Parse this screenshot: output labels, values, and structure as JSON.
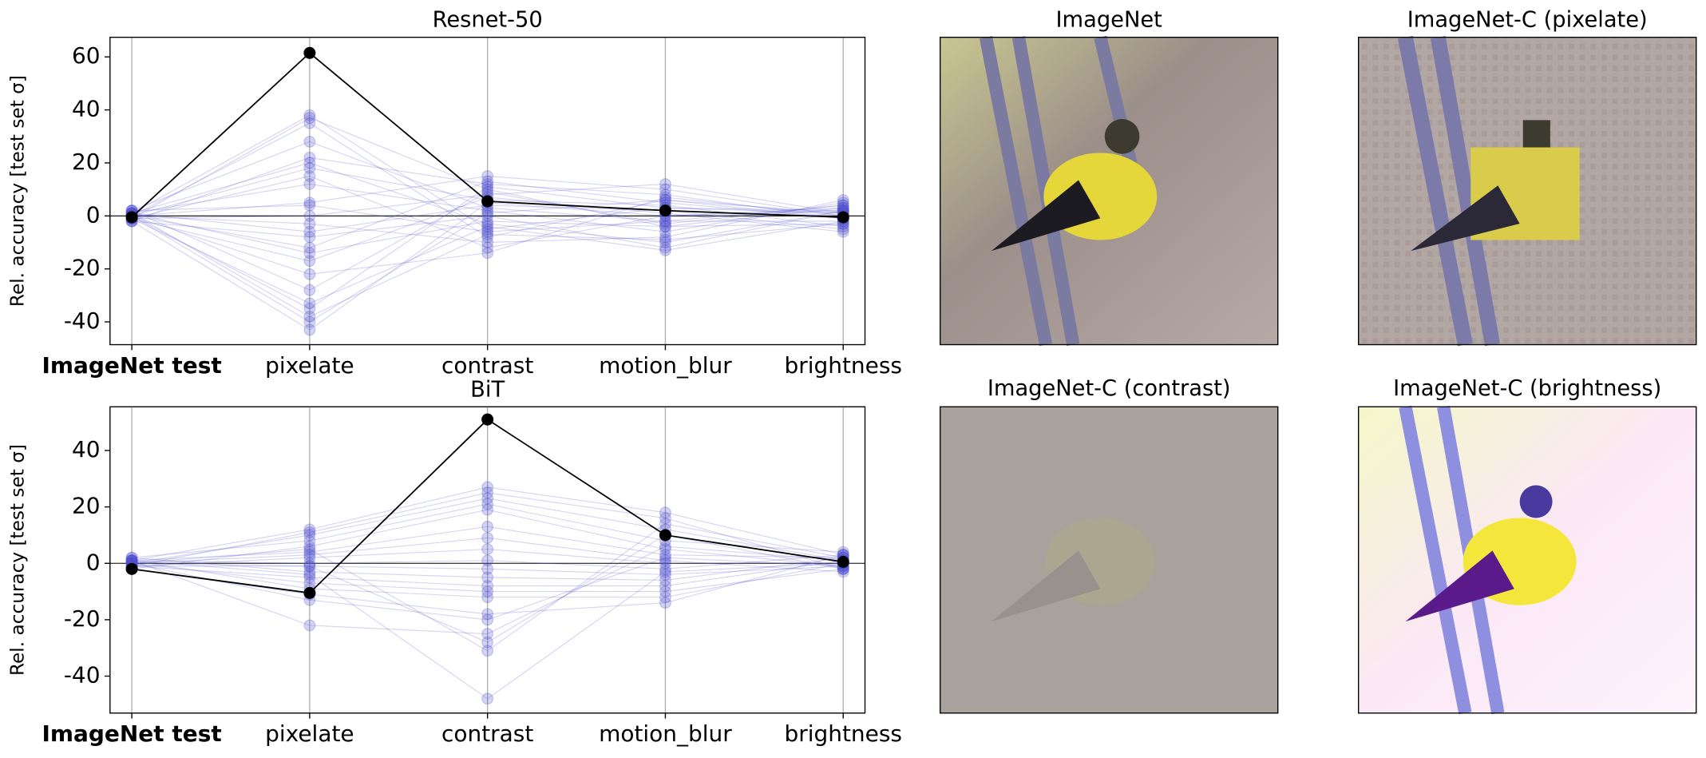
{
  "chart_data": [
    {
      "type": "line",
      "title": "Resnet-50",
      "y_label": "Rel. accuracy [test set σ]",
      "categories": [
        "ImageNet test",
        "pixelate",
        "contrast",
        "motion_blur",
        "brightness"
      ],
      "bold_first_category": true,
      "ylim": [
        -48.6,
        67.4
      ],
      "yticks": [
        -40,
        -20,
        0,
        20,
        40,
        60
      ],
      "x_grid": true,
      "reference_line": 0,
      "series": [
        {
          "color": "#5050d0",
          "alpha": 0.25,
          "values": [
            1,
            38,
            -5,
            3,
            2
          ]
        },
        {
          "color": "#5050d0",
          "alpha": 0.25,
          "values": [
            -1,
            37,
            10,
            -4,
            -3
          ]
        },
        {
          "color": "#5050d0",
          "alpha": 0.25,
          "values": [
            0,
            35,
            -8,
            6,
            1
          ]
        },
        {
          "color": "#5050d0",
          "alpha": 0.25,
          "values": [
            2,
            28,
            3,
            -2,
            4
          ]
        },
        {
          "color": "#5050d0",
          "alpha": 0.25,
          "values": [
            -2,
            22,
            12,
            8,
            -1
          ]
        },
        {
          "color": "#5050d0",
          "alpha": 0.25,
          "values": [
            1,
            20,
            -3,
            -10,
            2
          ]
        },
        {
          "color": "#5050d0",
          "alpha": 0.25,
          "values": [
            0,
            18,
            6,
            4,
            -4
          ]
        },
        {
          "color": "#5050d0",
          "alpha": 0.25,
          "values": [
            -1,
            15,
            -12,
            0,
            3
          ]
        },
        {
          "color": "#5050d0",
          "alpha": 0.25,
          "values": [
            1,
            12,
            2,
            -6,
            5
          ]
        },
        {
          "color": "#5050d0",
          "alpha": 0.25,
          "values": [
            0,
            5,
            15,
            10,
            0
          ]
        },
        {
          "color": "#5050d0",
          "alpha": 0.25,
          "values": [
            2,
            4,
            -6,
            -2,
            -2
          ]
        },
        {
          "color": "#5050d0",
          "alpha": 0.25,
          "values": [
            -1,
            0,
            8,
            12,
            1
          ]
        },
        {
          "color": "#5050d0",
          "alpha": 0.25,
          "values": [
            0,
            -3,
            -10,
            -8,
            6
          ]
        },
        {
          "color": "#5050d0",
          "alpha": 0.25,
          "values": [
            1,
            -6,
            4,
            2,
            -5
          ]
        },
        {
          "color": "#5050d0",
          "alpha": 0.25,
          "values": [
            -2,
            -8,
            0,
            -12,
            2
          ]
        },
        {
          "color": "#5050d0",
          "alpha": 0.25,
          "values": [
            0,
            -12,
            13,
            5,
            -1
          ]
        },
        {
          "color": "#5050d0",
          "alpha": 0.25,
          "values": [
            1,
            -14,
            -2,
            -4,
            3
          ]
        },
        {
          "color": "#5050d0",
          "alpha": 0.25,
          "values": [
            -1,
            -17,
            7,
            1,
            -6
          ]
        },
        {
          "color": "#5050d0",
          "alpha": 0.25,
          "values": [
            0,
            -22,
            -14,
            7,
            0
          ]
        },
        {
          "color": "#5050d0",
          "alpha": 0.25,
          "values": [
            2,
            -28,
            9,
            -3,
            4
          ]
        },
        {
          "color": "#5050d0",
          "alpha": 0.25,
          "values": [
            -1,
            -33,
            -4,
            -13,
            -2
          ]
        },
        {
          "color": "#5050d0",
          "alpha": 0.25,
          "values": [
            0,
            -35,
            11,
            3,
            1
          ]
        },
        {
          "color": "#5050d0",
          "alpha": 0.25,
          "values": [
            1,
            -38,
            -7,
            -9,
            -3
          ]
        },
        {
          "color": "#5050d0",
          "alpha": 0.25,
          "values": [
            -2,
            -43,
            5,
            0,
            2
          ]
        },
        {
          "color": "#5050d0",
          "alpha": 0.25,
          "values": [
            0,
            -40,
            1,
            6,
            -1
          ]
        },
        {
          "color": "#000000",
          "alpha": 1,
          "values": [
            -0.5,
            61.5,
            5.5,
            2,
            -0.5
          ]
        }
      ]
    },
    {
      "type": "line",
      "title": "BiT",
      "y_label": "Rel. accuracy [test set σ]",
      "categories": [
        "ImageNet test",
        "pixelate",
        "contrast",
        "motion_blur",
        "brightness"
      ],
      "bold_first_category": true,
      "ylim": [
        -53.1,
        55.5
      ],
      "yticks": [
        -40,
        -20,
        0,
        20,
        40
      ],
      "x_grid": true,
      "reference_line": 0,
      "series": [
        {
          "color": "#5050d0",
          "alpha": 0.25,
          "values": [
            1,
            12,
            27,
            18,
            3
          ]
        },
        {
          "color": "#5050d0",
          "alpha": 0.25,
          "values": [
            -1,
            11,
            25,
            16,
            -2
          ]
        },
        {
          "color": "#5050d0",
          "alpha": 0.25,
          "values": [
            0,
            10,
            23,
            12,
            1
          ]
        },
        {
          "color": "#5050d0",
          "alpha": 0.25,
          "values": [
            2,
            8,
            21,
            8,
            4
          ]
        },
        {
          "color": "#5050d0",
          "alpha": 0.25,
          "values": [
            -2,
            6,
            19,
            5,
            -1
          ]
        },
        {
          "color": "#5050d0",
          "alpha": 0.25,
          "values": [
            1,
            4,
            13,
            3,
            2
          ]
        },
        {
          "color": "#5050d0",
          "alpha": 0.25,
          "values": [
            0,
            3,
            9,
            1,
            -3
          ]
        },
        {
          "color": "#5050d0",
          "alpha": 0.25,
          "values": [
            -1,
            2,
            5,
            0,
            0
          ]
        },
        {
          "color": "#5050d0",
          "alpha": 0.25,
          "values": [
            1,
            0,
            1,
            -2,
            3
          ]
        },
        {
          "color": "#5050d0",
          "alpha": 0.25,
          "values": [
            0,
            -1,
            -2,
            -4,
            -1
          ]
        },
        {
          "color": "#5050d0",
          "alpha": 0.25,
          "values": [
            2,
            -3,
            -5,
            -6,
            2
          ]
        },
        {
          "color": "#5050d0",
          "alpha": 0.25,
          "values": [
            -1,
            -5,
            -8,
            -8,
            1
          ]
        },
        {
          "color": "#5050d0",
          "alpha": 0.25,
          "values": [
            0,
            -7,
            -10,
            -10,
            -2
          ]
        },
        {
          "color": "#5050d0",
          "alpha": 0.25,
          "values": [
            1,
            -9,
            -12,
            -12,
            0
          ]
        },
        {
          "color": "#5050d0",
          "alpha": 0.25,
          "values": [
            -2,
            -11,
            -18,
            -14,
            3
          ]
        },
        {
          "color": "#5050d0",
          "alpha": 0.25,
          "values": [
            0,
            -13,
            -20,
            2,
            -1
          ]
        },
        {
          "color": "#5050d0",
          "alpha": 0.25,
          "values": [
            1,
            -22,
            -25,
            6,
            1
          ]
        },
        {
          "color": "#5050d0",
          "alpha": 0.25,
          "values": [
            -1,
            -1,
            -28,
            10,
            -2
          ]
        },
        {
          "color": "#5050d0",
          "alpha": 0.25,
          "values": [
            0,
            5,
            -31,
            14,
            2
          ]
        },
        {
          "color": "#5050d0",
          "alpha": 0.25,
          "values": [
            1,
            -4,
            -48,
            -3,
            0
          ]
        },
        {
          "color": "#000000",
          "alpha": 1,
          "values": [
            -2,
            -10.5,
            51,
            10,
            0.5
          ]
        }
      ]
    }
  ],
  "images": [
    {
      "title": "ImageNet"
    },
    {
      "title": "ImageNet-C (pixelate)"
    },
    {
      "title": "ImageNet-C (contrast)"
    },
    {
      "title": "ImageNet-C (brightness)"
    }
  ]
}
